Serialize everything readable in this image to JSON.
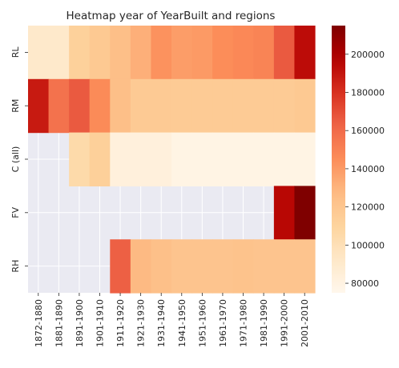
{
  "chart_data": {
    "type": "heatmap",
    "title": "Heatmap year of YearBuilt and regions",
    "xlabel": "",
    "ylabel": "",
    "x_categories": [
      "1872-1880",
      "1881-1890",
      "1891-1900",
      "1901-1910",
      "1911-1920",
      "1921-1930",
      "1931-1940",
      "1941-1950",
      "1951-1960",
      "1961-1970",
      "1971-1980",
      "1981-1990",
      "1991-2000",
      "2001-2010"
    ],
    "y_categories": [
      "RL",
      "RM",
      "C (all)",
      "FV",
      "RH"
    ],
    "values": [
      [
        91000,
        91000,
        112000,
        118000,
        125000,
        132000,
        143000,
        139000,
        140000,
        145000,
        147000,
        149000,
        166000,
        193000
      ],
      [
        188000,
        157000,
        166000,
        146000,
        125000,
        117000,
        117000,
        116000,
        116000,
        116000,
        116000,
        116000,
        116000,
        118000
      ],
      [
        null,
        null,
        105000,
        113000,
        83000,
        83000,
        83000,
        79000,
        79000,
        79000,
        79000,
        79000,
        79000,
        79000
      ],
      [
        null,
        null,
        null,
        null,
        null,
        null,
        null,
        null,
        null,
        null,
        null,
        null,
        195000,
        215000
      ],
      [
        null,
        null,
        null,
        null,
        164000,
        128000,
        124000,
        121000,
        121000,
        121000,
        122000,
        121000,
        121000,
        121000
      ]
    ],
    "colorbar": {
      "ticks": [
        80000,
        100000,
        120000,
        140000,
        160000,
        180000,
        200000
      ],
      "range": [
        75000,
        215000
      ]
    },
    "colormap": "OrRd",
    "missing_color": "#eaeaf2",
    "grid": true
  }
}
